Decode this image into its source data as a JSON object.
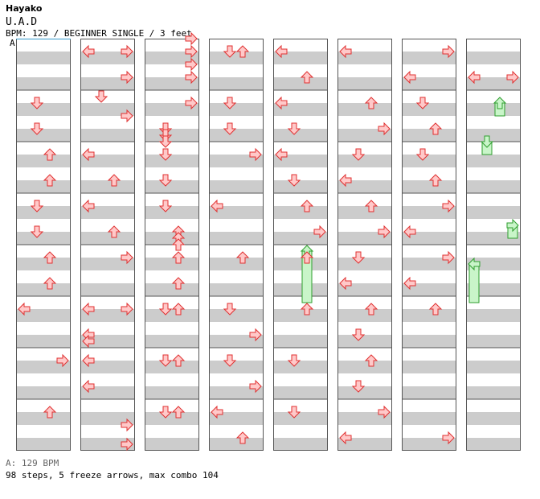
{
  "header": {
    "artist": "Hayako",
    "song": "U.A.D",
    "meta": "BPM: 129 / BEGINNER SINGLE / 3 feet"
  },
  "footer": {
    "bpm_legend": "A: 129 BPM",
    "summary": "98 steps, 5 freeze arrows, max combo 104"
  },
  "bpm_marker": {
    "label": "A",
    "measure": 0,
    "beat": 0
  },
  "chart_data": {
    "type": "step-chart",
    "columns": 8,
    "measures_per_column": 8,
    "total_measures": 64,
    "lanes": [
      "left",
      "down",
      "up",
      "right"
    ],
    "notes": [
      {
        "measure": 1,
        "beat": 1,
        "lane": "down"
      },
      {
        "measure": 1,
        "beat": 3,
        "lane": "down"
      },
      {
        "measure": 2,
        "beat": 1,
        "lane": "up"
      },
      {
        "measure": 2,
        "beat": 3,
        "lane": "up"
      },
      {
        "measure": 3,
        "beat": 1,
        "lane": "down"
      },
      {
        "measure": 3,
        "beat": 3,
        "lane": "down"
      },
      {
        "measure": 4,
        "beat": 1,
        "lane": "up"
      },
      {
        "measure": 4,
        "beat": 3,
        "lane": "up"
      },
      {
        "measure": 5,
        "beat": 1,
        "lane": "left"
      },
      {
        "measure": 6,
        "beat": 1,
        "lane": "right"
      },
      {
        "measure": 7,
        "beat": 1,
        "lane": "up"
      },
      {
        "measure": 8,
        "beat": 1,
        "lane": "left"
      },
      {
        "measure": 8,
        "beat": 1,
        "lane": "right"
      },
      {
        "measure": 8,
        "beat": 3,
        "lane": "right"
      },
      {
        "measure": 9,
        "beat": 0.5,
        "lane": "down"
      },
      {
        "measure": 9,
        "beat": 2,
        "lane": "right"
      },
      {
        "measure": 10,
        "beat": 1,
        "lane": "left"
      },
      {
        "measure": 10,
        "beat": 3,
        "lane": "up"
      },
      {
        "measure": 11,
        "beat": 1,
        "lane": "left"
      },
      {
        "measure": 11,
        "beat": 3,
        "lane": "up"
      },
      {
        "measure": 12,
        "beat": 1,
        "lane": "right"
      },
      {
        "measure": 13,
        "beat": 1,
        "lane": "left"
      },
      {
        "measure": 13,
        "beat": 1,
        "lane": "right"
      },
      {
        "measure": 13,
        "beat": 3,
        "lane": "left"
      },
      {
        "measure": 13,
        "beat": 3.5,
        "lane": "left"
      },
      {
        "measure": 14,
        "beat": 1,
        "lane": "left"
      },
      {
        "measure": 14,
        "beat": 3,
        "lane": "left"
      },
      {
        "measure": 15,
        "beat": 2,
        "lane": "right"
      },
      {
        "measure": 15,
        "beat": 3.5,
        "lane": "right"
      },
      {
        "measure": 16,
        "beat": 0,
        "lane": "right"
      },
      {
        "measure": 16,
        "beat": 1,
        "lane": "right"
      },
      {
        "measure": 16,
        "beat": 2,
        "lane": "right"
      },
      {
        "measure": 16,
        "beat": 3,
        "lane": "right"
      },
      {
        "measure": 17,
        "beat": 1,
        "lane": "right"
      },
      {
        "measure": 17,
        "beat": 3,
        "lane": "down"
      },
      {
        "measure": 17,
        "beat": 3.5,
        "lane": "down"
      },
      {
        "measure": 18,
        "beat": 0,
        "lane": "down"
      },
      {
        "measure": 18,
        "beat": 1,
        "lane": "down"
      },
      {
        "measure": 18,
        "beat": 3,
        "lane": "down"
      },
      {
        "measure": 19,
        "beat": 1,
        "lane": "down"
      },
      {
        "measure": 19,
        "beat": 3,
        "lane": "up"
      },
      {
        "measure": 19,
        "beat": 3.5,
        "lane": "up"
      },
      {
        "measure": 20,
        "beat": 0,
        "lane": "up"
      },
      {
        "measure": 20,
        "beat": 1,
        "lane": "up"
      },
      {
        "measure": 20,
        "beat": 3,
        "lane": "up"
      },
      {
        "measure": 21,
        "beat": 1,
        "lane": "down"
      },
      {
        "measure": 21,
        "beat": 1,
        "lane": "up"
      },
      {
        "measure": 22,
        "beat": 1,
        "lane": "down"
      },
      {
        "measure": 22,
        "beat": 1,
        "lane": "up"
      },
      {
        "measure": 23,
        "beat": 1,
        "lane": "down"
      },
      {
        "measure": 23,
        "beat": 1,
        "lane": "up"
      },
      {
        "measure": 24,
        "beat": 1,
        "lane": "down"
      },
      {
        "measure": 24,
        "beat": 1,
        "lane": "up"
      },
      {
        "measure": 25,
        "beat": 1,
        "lane": "down"
      },
      {
        "measure": 25,
        "beat": 3,
        "lane": "down"
      },
      {
        "measure": 26,
        "beat": 1,
        "lane": "right"
      },
      {
        "measure": 27,
        "beat": 1,
        "lane": "left"
      },
      {
        "measure": 28,
        "beat": 1,
        "lane": "up"
      },
      {
        "measure": 29,
        "beat": 1,
        "lane": "down"
      },
      {
        "measure": 29,
        "beat": 3,
        "lane": "right"
      },
      {
        "measure": 30,
        "beat": 1,
        "lane": "down"
      },
      {
        "measure": 30,
        "beat": 3,
        "lane": "right"
      },
      {
        "measure": 31,
        "beat": 1,
        "lane": "left"
      },
      {
        "measure": 31,
        "beat": 3,
        "lane": "up"
      },
      {
        "measure": 32,
        "beat": 1,
        "lane": "left"
      },
      {
        "measure": 32,
        "beat": 3,
        "lane": "up"
      },
      {
        "measure": 33,
        "beat": 1,
        "lane": "left"
      },
      {
        "measure": 33,
        "beat": 3,
        "lane": "down"
      },
      {
        "measure": 34,
        "beat": 1,
        "lane": "left"
      },
      {
        "measure": 34,
        "beat": 3,
        "lane": "down"
      },
      {
        "measure": 35,
        "beat": 1,
        "lane": "up"
      },
      {
        "measure": 35,
        "beat": 3,
        "lane": "right"
      },
      {
        "measure": 36,
        "beat": 1,
        "lane": "up"
      },
      {
        "measure": 37,
        "beat": 1,
        "lane": "up"
      },
      {
        "measure": 38,
        "beat": 1,
        "lane": "down"
      },
      {
        "measure": 39,
        "beat": 1,
        "lane": "down"
      },
      {
        "measure": 40,
        "beat": 1,
        "lane": "left"
      },
      {
        "measure": 41,
        "beat": 1,
        "lane": "up"
      },
      {
        "measure": 41,
        "beat": 3,
        "lane": "right"
      },
      {
        "measure": 42,
        "beat": 1,
        "lane": "down"
      },
      {
        "measure": 42,
        "beat": 3,
        "lane": "left"
      },
      {
        "measure": 43,
        "beat": 1,
        "lane": "up"
      },
      {
        "measure": 43,
        "beat": 3,
        "lane": "right"
      },
      {
        "measure": 44,
        "beat": 1,
        "lane": "down"
      },
      {
        "measure": 44,
        "beat": 3,
        "lane": "left"
      },
      {
        "measure": 45,
        "beat": 1,
        "lane": "up"
      },
      {
        "measure": 45,
        "beat": 3,
        "lane": "down"
      },
      {
        "measure": 46,
        "beat": 1,
        "lane": "up"
      },
      {
        "measure": 46,
        "beat": 3,
        "lane": "down"
      },
      {
        "measure": 47,
        "beat": 1,
        "lane": "right"
      },
      {
        "measure": 47,
        "beat": 3,
        "lane": "left"
      },
      {
        "measure": 48,
        "beat": 1,
        "lane": "right"
      },
      {
        "measure": 48,
        "beat": 3,
        "lane": "left"
      },
      {
        "measure": 49,
        "beat": 1,
        "lane": "down"
      },
      {
        "measure": 49,
        "beat": 3,
        "lane": "up"
      },
      {
        "measure": 50,
        "beat": 1,
        "lane": "down"
      },
      {
        "measure": 50,
        "beat": 3,
        "lane": "up"
      },
      {
        "measure": 51,
        "beat": 1,
        "lane": "right"
      },
      {
        "measure": 51,
        "beat": 3,
        "lane": "left"
      },
      {
        "measure": 52,
        "beat": 1,
        "lane": "right"
      },
      {
        "measure": 52,
        "beat": 3,
        "lane": "left"
      },
      {
        "measure": 53,
        "beat": 1,
        "lane": "up"
      },
      {
        "measure": 55,
        "beat": 3,
        "lane": "right"
      },
      {
        "measure": 56,
        "beat": 3,
        "lane": "left"
      },
      {
        "measure": 56,
        "beat": 3,
        "lane": "right"
      }
    ],
    "freezes": [
      {
        "lane": "up",
        "start_measure": 36,
        "start_beat": 0.5,
        "end_measure": 37,
        "end_beat": 0.5
      },
      {
        "lane": "up",
        "start_measure": 57,
        "start_beat": 1,
        "end_measure": 57,
        "end_beat": 2
      },
      {
        "lane": "down",
        "start_measure": 58,
        "start_beat": 0,
        "end_measure": 58,
        "end_beat": 1
      },
      {
        "lane": "right",
        "start_measure": 59,
        "start_beat": 2.5,
        "end_measure": 59,
        "end_beat": 3.5
      },
      {
        "lane": "left",
        "start_measure": 60,
        "start_beat": 1.5,
        "end_measure": 61,
        "end_beat": 0.5
      }
    ]
  },
  "colors": {
    "note_fill": "#ffc9c9",
    "note_stroke": "#e03030",
    "freeze_fill": "#c9f5c9",
    "freeze_stroke": "#2e9e2e",
    "stripe": "#cccccc",
    "bpm_marker": "#3399cc"
  }
}
